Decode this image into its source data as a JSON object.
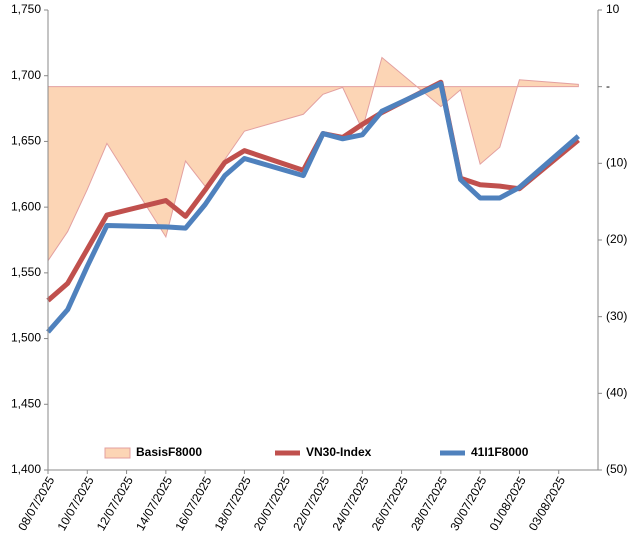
{
  "chart_data": {
    "type": "line",
    "x": [
      "08/07/2025",
      "09/07/2025",
      "10/07/2025",
      "11/07/2025",
      "14/07/2025",
      "15/07/2025",
      "16/07/2025",
      "17/07/2025",
      "18/07/2025",
      "21/07/2025",
      "22/07/2025",
      "23/07/2025",
      "24/07/2025",
      "25/07/2025",
      "28/07/2025",
      "29/07/2025",
      "30/07/2025",
      "31/07/2025",
      "01/08/2025",
      "04/08/2025"
    ],
    "xlim": [
      "08/07/2025",
      "05/08/2025"
    ],
    "xticks": [
      "08/07/2025",
      "10/07/2025",
      "12/07/2025",
      "14/07/2025",
      "16/07/2025",
      "18/07/2025",
      "20/07/2025",
      "22/07/2025",
      "24/07/2025",
      "26/07/2025",
      "28/07/2025",
      "30/07/2025",
      "01/08/2025",
      "03/08/2025"
    ],
    "ylim": [
      1400,
      1750
    ],
    "yticks": [
      {
        "value": 1400,
        "label": "1,400"
      },
      {
        "value": 1450,
        "label": "1,450"
      },
      {
        "value": 1500,
        "label": "1,500"
      },
      {
        "value": 1550,
        "label": "1,550"
      },
      {
        "value": 1600,
        "label": "1,600"
      },
      {
        "value": 1650,
        "label": "1,650"
      },
      {
        "value": 1700,
        "label": "1,700"
      },
      {
        "value": 1750,
        "label": "1,750"
      }
    ],
    "y2lim": [
      -50,
      10
    ],
    "y2ticks": [
      {
        "value": -50,
        "label": "(50)"
      },
      {
        "value": -40,
        "label": "(40)"
      },
      {
        "value": -30,
        "label": "(30)"
      },
      {
        "value": -20,
        "label": "(20)"
      },
      {
        "value": -10,
        "label": "(10)"
      },
      {
        "value": 0,
        "label": "-"
      },
      10
    ],
    "series": [
      {
        "name": "BasisF8000",
        "type": "area",
        "axis": "y2",
        "color": "#fcd5b5",
        "values": [
          -22.7,
          -18.9,
          -13.4,
          -7.4,
          -19.6,
          -9.7,
          -13.0,
          -9.5,
          -5.8,
          -3.6,
          -1.0,
          -0.1,
          -5.6,
          3.8,
          -2.6,
          -0.4,
          -10.1,
          -7.9,
          0.9,
          0.3
        ]
      },
      {
        "name": "VN30-Index",
        "type": "line",
        "color": "#c0504d",
        "values": [
          1529,
          1542,
          1568,
          1594,
          1605,
          1593,
          1613,
          1634,
          1643,
          1628,
          1656,
          1653,
          1663,
          1672,
          1695,
          1622,
          1617,
          1616,
          1614,
          1651
        ]
      },
      {
        "name": "41I1F8000",
        "type": "line",
        "color": "#4f81bd",
        "values": [
          1505,
          1522,
          1555,
          1586,
          1585,
          1584,
          1602,
          1624,
          1637,
          1624,
          1656,
          1652,
          1655,
          1673,
          1694,
          1621,
          1607,
          1607,
          1615,
          1654
        ]
      }
    ]
  }
}
